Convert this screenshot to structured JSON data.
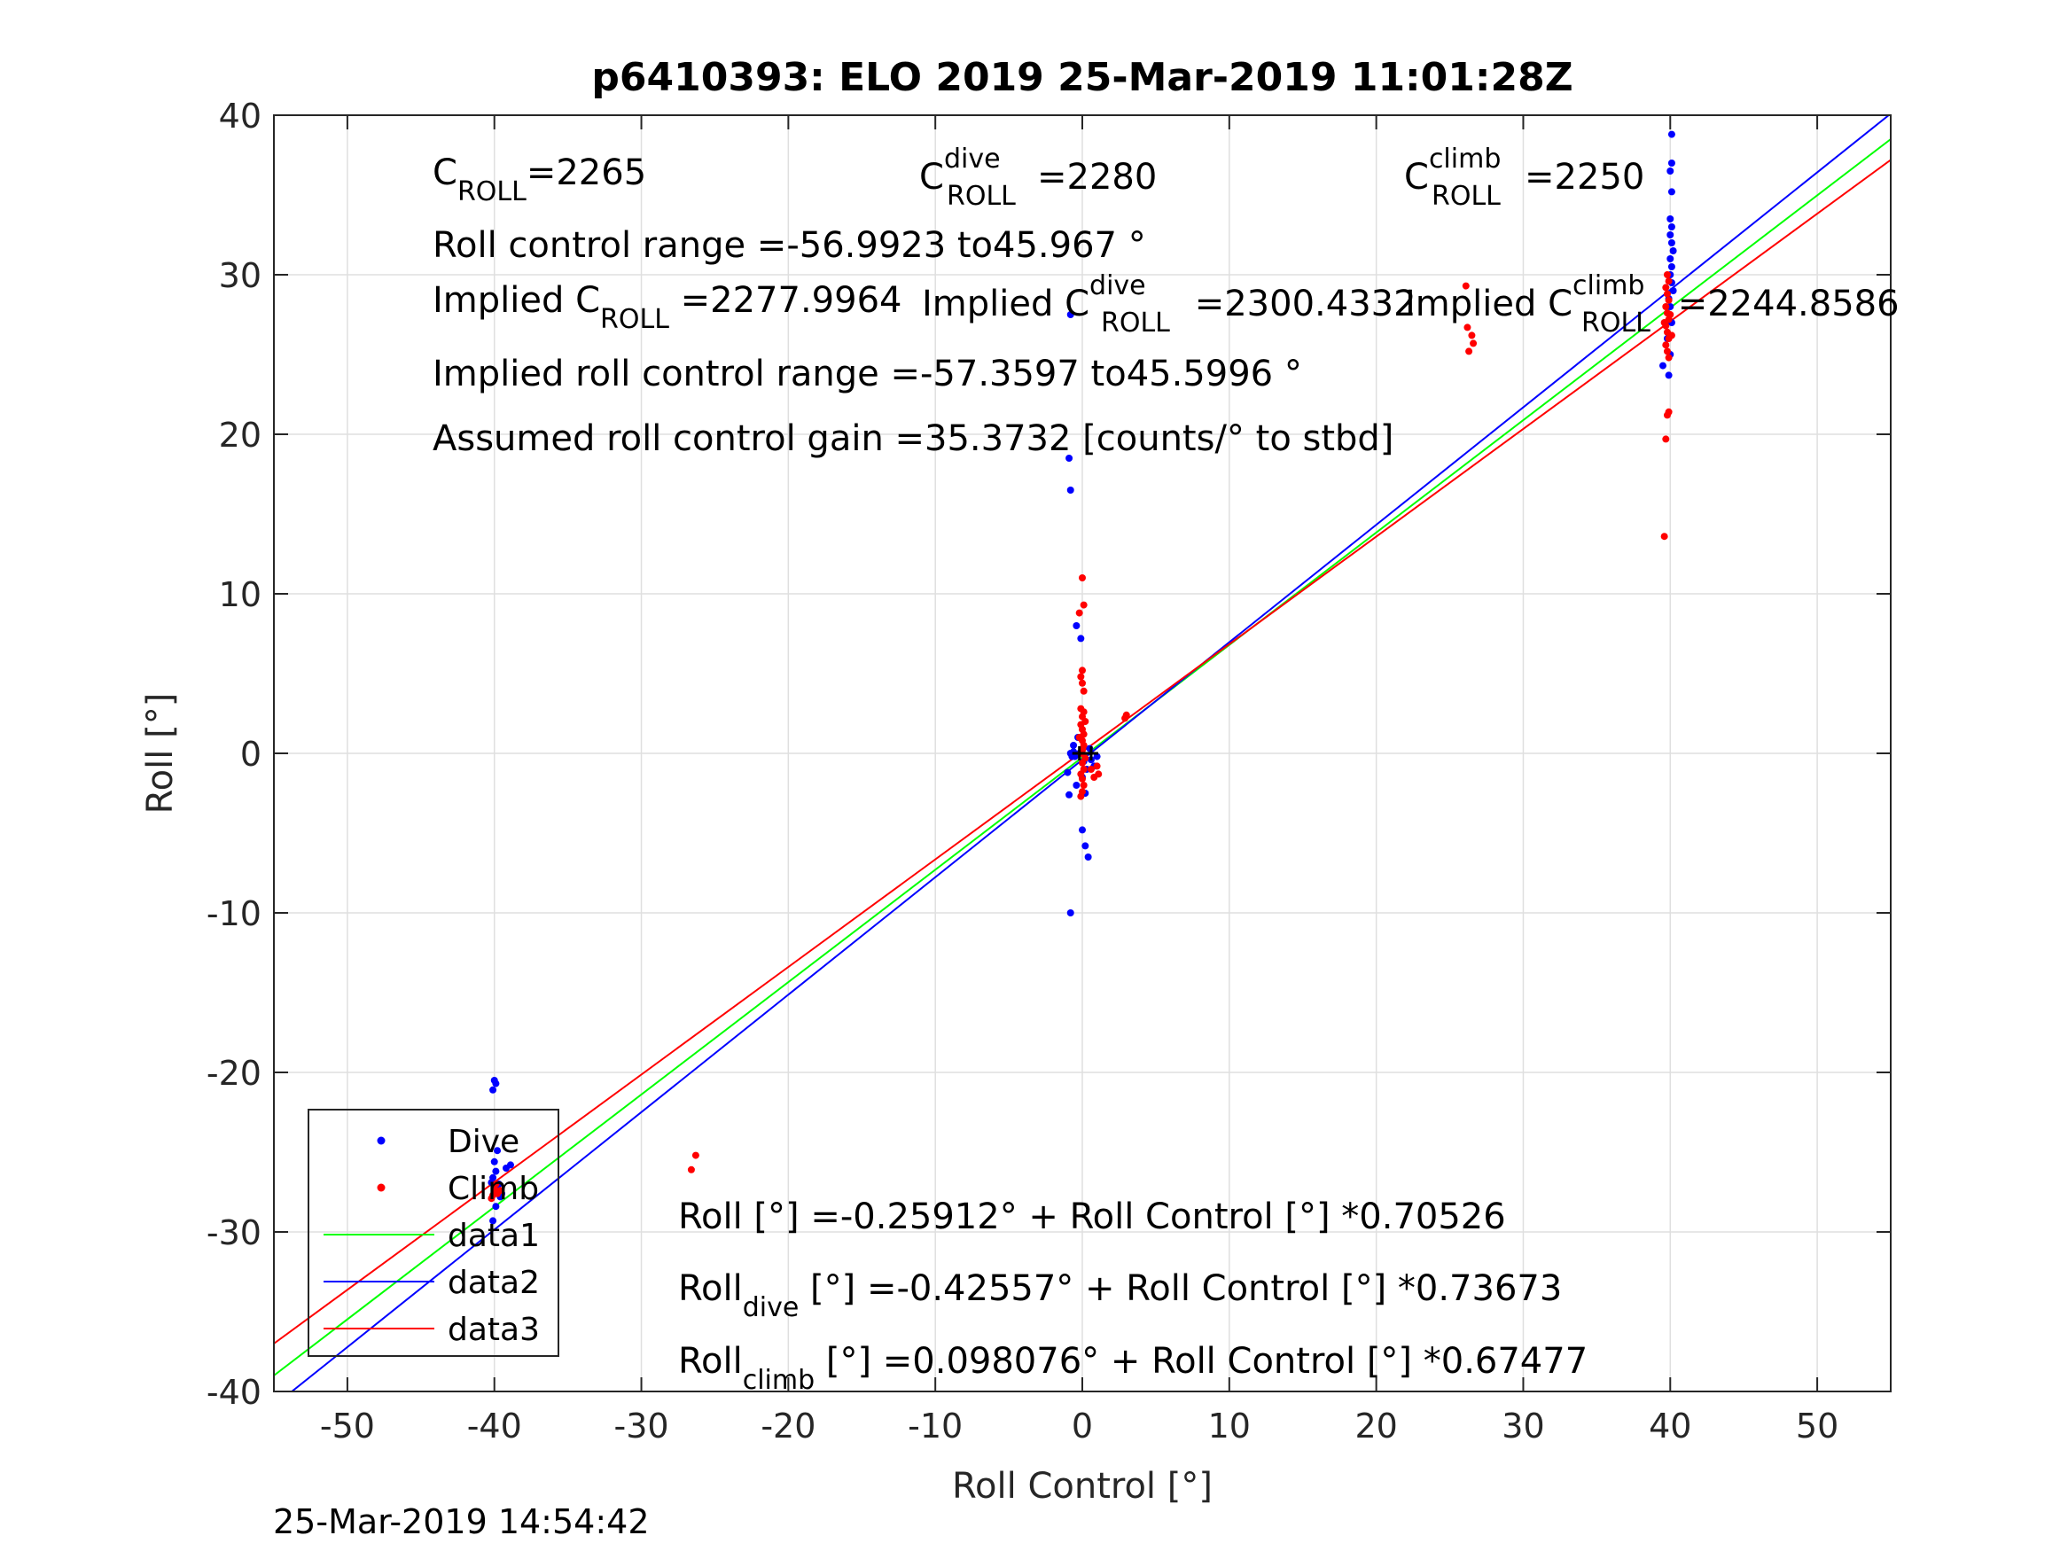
{
  "chart_data": {
    "type": "scatter",
    "title": "p6410393: ELO 2019 25-Mar-2019 11:01:28Z",
    "xlabel": "Roll Control [°]",
    "ylabel": "Roll [°]",
    "xlim": [
      -55,
      55
    ],
    "ylim": [
      -40,
      40
    ],
    "xticks": [
      -50,
      -40,
      -30,
      -20,
      -10,
      0,
      10,
      20,
      30,
      40,
      50
    ],
    "yticks": [
      -40,
      -30,
      -20,
      -10,
      0,
      10,
      20,
      30,
      40
    ],
    "grid": true,
    "legend": {
      "location": "bottom-left",
      "entries": [
        "Dive",
        "Climb",
        "data1",
        "data2",
        "data3"
      ]
    },
    "colors": {
      "dive": "#0000ff",
      "climb": "#ff0000",
      "data1": "#00ff00",
      "data2": "#0000ff",
      "data3": "#ff0000"
    },
    "series": [
      {
        "name": "Dive",
        "kind": "points",
        "color": "#0000ff",
        "points": [
          [
            -40.0,
            -20.5
          ],
          [
            -39.9,
            -20.7
          ],
          [
            -40.1,
            -21.1
          ],
          [
            -39.8,
            -24.9
          ],
          [
            -40.0,
            -25.6
          ],
          [
            -39.9,
            -26.2
          ],
          [
            -40.1,
            -26.6
          ],
          [
            -39.7,
            -27.0
          ],
          [
            -40.0,
            -27.4
          ],
          [
            -39.6,
            -27.8
          ],
          [
            -39.9,
            -28.4
          ],
          [
            -40.1,
            -29.3
          ],
          [
            -38.9,
            -25.8
          ],
          [
            -39.2,
            -26.0
          ],
          [
            -39.5,
            -27.6
          ],
          [
            -40.2,
            -26.9
          ],
          [
            -39.8,
            -27.2
          ],
          [
            -0.8,
            27.5
          ],
          [
            -0.9,
            18.5
          ],
          [
            -0.8,
            16.5
          ],
          [
            -0.4,
            8.0
          ],
          [
            -0.1,
            7.2
          ],
          [
            -0.3,
            1.0
          ],
          [
            -0.6,
            0.5
          ],
          [
            -0.2,
            0.0
          ],
          [
            -0.7,
            -0.2
          ],
          [
            0.1,
            -0.5
          ],
          [
            0.3,
            -1.0
          ],
          [
            0.0,
            -1.5
          ],
          [
            -0.4,
            -2.0
          ],
          [
            0.2,
            -2.5
          ],
          [
            -0.9,
            -2.6
          ],
          [
            0.0,
            -4.8
          ],
          [
            0.2,
            -5.8
          ],
          [
            0.4,
            -6.5
          ],
          [
            -0.8,
            -10.0
          ],
          [
            -0.5,
            -0.2
          ],
          [
            -0.6,
            0.1
          ],
          [
            0.5,
            0.3
          ],
          [
            0.6,
            -0.4
          ],
          [
            0.8,
            -0.8
          ],
          [
            1.0,
            -0.2
          ],
          [
            -0.8,
            0.0
          ],
          [
            -1.0,
            -1.2
          ],
          [
            40.1,
            38.8
          ],
          [
            40.1,
            37.0
          ],
          [
            40.0,
            36.5
          ],
          [
            40.1,
            35.2
          ],
          [
            40.0,
            33.5
          ],
          [
            40.1,
            33.0
          ],
          [
            40.0,
            32.5
          ],
          [
            40.1,
            32.0
          ],
          [
            40.2,
            31.5
          ],
          [
            40.0,
            31.0
          ],
          [
            40.1,
            30.5
          ],
          [
            40.0,
            30.0
          ],
          [
            40.1,
            29.5
          ],
          [
            40.2,
            29.0
          ],
          [
            39.9,
            28.5
          ],
          [
            40.0,
            28.0
          ],
          [
            40.1,
            27.0
          ],
          [
            39.8,
            26.0
          ],
          [
            39.5,
            24.3
          ],
          [
            39.9,
            23.7
          ],
          [
            40.0,
            25.0
          ]
        ]
      },
      {
        "name": "Climb",
        "kind": "points",
        "color": "#ff0000",
        "points": [
          [
            -40.0,
            -27.3
          ],
          [
            -39.8,
            -27.6
          ],
          [
            -40.2,
            -27.9
          ],
          [
            -39.9,
            -27.0
          ],
          [
            -39.6,
            -27.4
          ],
          [
            -40.1,
            -27.7
          ],
          [
            -26.3,
            -25.2
          ],
          [
            -26.6,
            -26.1
          ],
          [
            26.1,
            29.3
          ],
          [
            26.2,
            26.7
          ],
          [
            26.5,
            26.2
          ],
          [
            26.6,
            25.7
          ],
          [
            26.3,
            25.2
          ],
          [
            0.0,
            11.0
          ],
          [
            0.1,
            9.3
          ],
          [
            -0.2,
            8.8
          ],
          [
            0.0,
            5.2
          ],
          [
            -0.1,
            4.8
          ],
          [
            0.0,
            4.4
          ],
          [
            0.1,
            3.9
          ],
          [
            -0.1,
            2.8
          ],
          [
            0.1,
            2.6
          ],
          [
            0.0,
            2.3
          ],
          [
            0.2,
            2.0
          ],
          [
            -0.1,
            1.8
          ],
          [
            0.0,
            1.5
          ],
          [
            0.1,
            1.2
          ],
          [
            -0.2,
            1.0
          ],
          [
            0.0,
            0.8
          ],
          [
            0.1,
            0.5
          ],
          [
            0.0,
            0.2
          ],
          [
            -0.1,
            0.0
          ],
          [
            0.2,
            -0.3
          ],
          [
            0.0,
            -0.6
          ],
          [
            0.1,
            -1.0
          ],
          [
            -0.1,
            -1.3
          ],
          [
            0.0,
            -1.6
          ],
          [
            0.1,
            -2.0
          ],
          [
            0.0,
            -2.4
          ],
          [
            -0.1,
            -2.7
          ],
          [
            0.6,
            -1.0
          ],
          [
            0.8,
            -1.5
          ],
          [
            1.0,
            -0.8
          ],
          [
            1.1,
            -1.3
          ],
          [
            3.0,
            2.4
          ],
          [
            2.9,
            2.2
          ],
          [
            39.8,
            30.0
          ],
          [
            39.9,
            29.6
          ],
          [
            39.7,
            29.2
          ],
          [
            39.8,
            28.8
          ],
          [
            39.9,
            28.4
          ],
          [
            39.7,
            28.0
          ],
          [
            39.8,
            27.6
          ],
          [
            39.9,
            27.2
          ],
          [
            39.7,
            26.8
          ],
          [
            39.8,
            26.4
          ],
          [
            39.9,
            26.0
          ],
          [
            39.7,
            25.6
          ],
          [
            39.8,
            25.2
          ],
          [
            39.9,
            24.8
          ],
          [
            40.0,
            27.5
          ],
          [
            40.1,
            26.2
          ],
          [
            39.6,
            27.0
          ],
          [
            39.9,
            21.4
          ],
          [
            39.8,
            21.2
          ],
          [
            39.7,
            19.7
          ],
          [
            39.6,
            13.6
          ]
        ]
      },
      {
        "name": "data1",
        "kind": "line",
        "color": "#00ff00",
        "x": [
          -55,
          55
        ],
        "y": [
          -39.0,
          38.5
        ]
      },
      {
        "name": "data2",
        "kind": "line",
        "color": "#0000ff",
        "x": [
          -55,
          55
        ],
        "y": [
          -40.9,
          40.1
        ]
      },
      {
        "name": "data3",
        "kind": "line",
        "color": "#ff0000",
        "x": [
          -55,
          55
        ],
        "y": [
          -37.0,
          37.2
        ]
      }
    ],
    "markers": [
      {
        "name": "center-cross-dive",
        "x": -0.2,
        "y": 0.0,
        "color": "#000000"
      },
      {
        "name": "center-cross-climb",
        "x": 0.6,
        "y": 0.0,
        "color": "#000000"
      }
    ],
    "annotations": {
      "c_roll": {
        "base": "C",
        "sub": "ROLL",
        "value": "=2265"
      },
      "c_roll_dive": {
        "base": "C",
        "sup": "dive",
        "sub": "ROLL",
        "value": "=2280"
      },
      "c_roll_climb": {
        "base": "C",
        "sup": "climb",
        "sub": "ROLL",
        "value": "=2250"
      },
      "roll_control_range": "Roll control range =-56.9923 to45.967 °",
      "implied_c_roll": {
        "prefix": "Implied C",
        "sub": "ROLL",
        "value": " =2277.9964"
      },
      "implied_c_roll_dive": {
        "prefix": "Implied C",
        "sup": "dive",
        "sub": "ROLL",
        "value": " =2300.4332"
      },
      "implied_c_roll_climb": {
        "prefix": "Implied C",
        "sup": "climb",
        "sub": "ROLL",
        "value": " =2244.8586"
      },
      "implied_roll_control_range": "Implied roll control range =-57.3597 to45.5996 °",
      "assumed_gain": "Assumed roll control gain =35.3732 [counts/° to stbd]",
      "fit_all": {
        "base": "Roll",
        "value": " [°] =-0.25912° + Roll Control [°] *0.70526"
      },
      "fit_dive": {
        "base": "Roll",
        "sub": "dive",
        "value": " [°] =-0.42557° + Roll Control [°] *0.73673"
      },
      "fit_climb": {
        "base": "Roll",
        "sub": "climb",
        "value": " [°] =0.098076° + Roll Control [°] *0.67477"
      }
    },
    "timestamp": "25-Mar-2019 14:54:42"
  }
}
